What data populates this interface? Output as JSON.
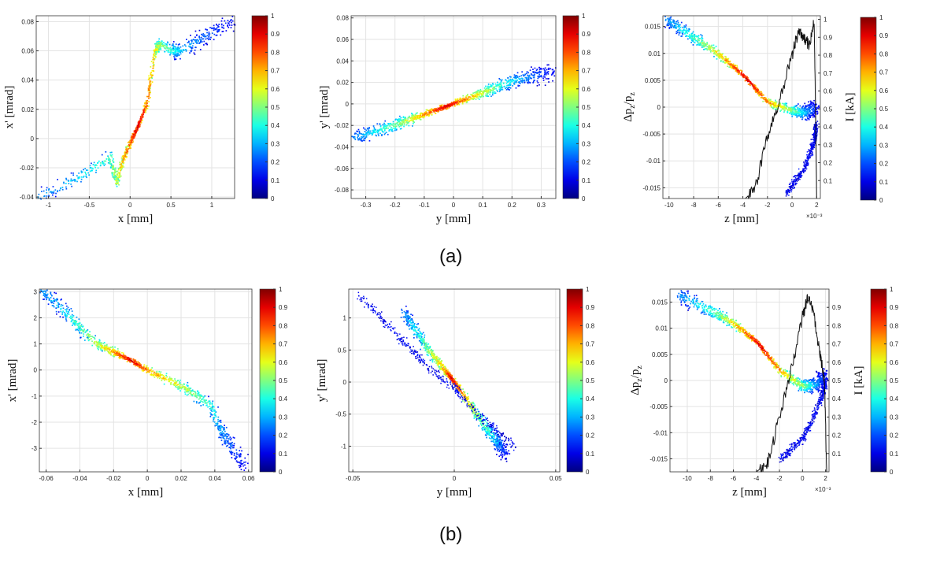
{
  "captions": {
    "a": "(a)",
    "b": "(b)"
  },
  "colormap": {
    "name": "jet",
    "ticks": [
      0,
      0.1,
      0.2,
      0.3,
      0.4,
      0.5,
      0.6,
      0.7,
      0.8,
      0.9,
      1
    ]
  },
  "chart_data": [
    {
      "id": "a1",
      "type": "scatter",
      "xlabel": "x [mm]",
      "ylabel": "x' [mrad]",
      "xlim": [
        -1.15,
        1.28
      ],
      "ylim": [
        -0.041,
        0.084
      ],
      "xticks": [
        -1,
        -0.5,
        0,
        0.5,
        1
      ],
      "yticks": [
        -0.04,
        -0.02,
        0,
        0.02,
        0.04,
        0.06,
        0.08
      ],
      "xtick_labels": [
        "-1",
        "-0.5",
        "0",
        "0.5",
        "1"
      ],
      "ytick_labels": [
        "-0.04",
        "-0.02",
        "0",
        "0.02",
        "0.04",
        "0.06",
        "0.08"
      ],
      "curve": [
        [
          -1.15,
          -0.04
        ],
        [
          -0.6,
          -0.025
        ],
        [
          -0.25,
          -0.012
        ],
        [
          -0.17,
          -0.03
        ],
        [
          -0.1,
          -0.015
        ],
        [
          0.0,
          -0.002
        ],
        [
          0.1,
          0.01
        ],
        [
          0.2,
          0.025
        ],
        [
          0.3,
          0.06
        ],
        [
          0.35,
          0.065
        ],
        [
          0.5,
          0.061
        ],
        [
          0.6,
          0.06
        ],
        [
          0.9,
          0.07
        ],
        [
          1.28,
          0.083
        ]
      ]
    },
    {
      "id": "a2",
      "type": "scatter",
      "xlabel": "y [mm]",
      "ylabel": "y' [mrad]",
      "xlim": [
        -0.35,
        0.35
      ],
      "ylim": [
        -0.088,
        0.082
      ],
      "xticks": [
        -0.3,
        -0.2,
        -0.1,
        0,
        0.1,
        0.2,
        0.3
      ],
      "yticks": [
        -0.08,
        -0.06,
        -0.04,
        -0.02,
        0,
        0.02,
        0.04,
        0.06,
        0.08
      ],
      "xtick_labels": [
        "-0.3",
        "-0.2",
        "-0.1",
        "0",
        "0.1",
        "0.2",
        "0.3"
      ],
      "ytick_labels": [
        "-0.08",
        "-0.06",
        "-0.04",
        "-0.02",
        "0",
        "0.02",
        "0.04",
        "0.06",
        "0.08"
      ],
      "curve": [
        [
          -0.34,
          -0.031
        ],
        [
          -0.2,
          -0.019
        ],
        [
          -0.1,
          -0.009
        ],
        [
          0.0,
          0.001
        ],
        [
          0.1,
          0.011
        ],
        [
          0.2,
          0.022
        ],
        [
          0.34,
          0.031
        ]
      ]
    },
    {
      "id": "a3",
      "type": "scatter",
      "xlabel": "z [mm]",
      "ylabel": "Δp",
      "ylabel_sub": "z",
      "ylabel_mid": "/p",
      "ylabel_sub2": "z",
      "xlim": [
        -10.5,
        2.3
      ],
      "ylim": [
        -0.017,
        0.017
      ],
      "xticks": [
        -10,
        -8,
        -6,
        -4,
        -2,
        0,
        2
      ],
      "yticks": [
        -0.015,
        -0.01,
        -0.005,
        0,
        0.005,
        0.01,
        0.015
      ],
      "xtick_labels": [
        "-10",
        "-8",
        "-6",
        "-4",
        "-2",
        "0",
        "2"
      ],
      "ytick_labels": [
        "-0.015",
        "-0.01",
        "-0.005",
        "0",
        "0.005",
        "0.01",
        "0.015"
      ],
      "x_multiplier": "×10⁻³",
      "y2label": "I [kA]",
      "y2lim": [
        0,
        1.02
      ],
      "y2ticks": [
        0.1,
        0.2,
        0.3,
        0.4,
        0.5,
        0.6,
        0.7,
        0.8,
        0.9,
        1
      ],
      "y2tick_labels": [
        "0.1",
        "0.2",
        "0.3",
        "0.4",
        "0.5",
        "0.6",
        "0.7",
        "0.8",
        "0.9",
        "1"
      ],
      "curve": [
        [
          -10.3,
          0.0165
        ],
        [
          -8,
          0.013
        ],
        [
          -6,
          0.01
        ],
        [
          -4,
          0.006
        ],
        [
          -2,
          0.001
        ],
        [
          0,
          -0.0005
        ],
        [
          1,
          -0.001
        ],
        [
          1.9,
          0.0
        ]
      ],
      "tail": [
        [
          -0.5,
          -0.016
        ],
        [
          1.0,
          -0.011
        ],
        [
          1.8,
          -0.006
        ],
        [
          1.9,
          -0.003
        ]
      ],
      "current": [
        [
          -3.8,
          0.0
        ],
        [
          -3,
          0.05
        ],
        [
          -2,
          0.35
        ],
        [
          -1,
          0.55
        ],
        [
          0,
          0.8
        ],
        [
          0.5,
          0.93
        ],
        [
          1,
          0.9
        ],
        [
          1.4,
          0.85
        ],
        [
          1.8,
          1.01
        ],
        [
          2.0,
          0.0
        ]
      ]
    },
    {
      "id": "b1",
      "type": "scatter",
      "xlabel": "x [mm]",
      "ylabel": "x' [mrad]",
      "xlim": [
        -0.064,
        0.062
      ],
      "ylim": [
        -3.9,
        3.1
      ],
      "xticks": [
        -0.06,
        -0.04,
        -0.02,
        0,
        0.02,
        0.04,
        0.06
      ],
      "yticks": [
        -3,
        -2,
        -1,
        0,
        1,
        2,
        3
      ],
      "xtick_labels": [
        "-0.06",
        "-0.04",
        "-0.02",
        "0",
        "0.02",
        "0.04",
        "0.06"
      ],
      "ytick_labels": [
        "-3",
        "-2",
        "-1",
        "0",
        "1",
        "2",
        "3"
      ],
      "curve": [
        [
          -0.063,
          3.1
        ],
        [
          -0.045,
          2.0
        ],
        [
          -0.03,
          1.0
        ],
        [
          -0.02,
          0.7
        ],
        [
          -0.01,
          0.4
        ],
        [
          0.0,
          0.0
        ],
        [
          0.02,
          -0.6
        ],
        [
          0.037,
          -1.3
        ],
        [
          0.045,
          -2.5
        ],
        [
          0.058,
          -3.7
        ]
      ]
    },
    {
      "id": "b2",
      "type": "scatter",
      "xlabel": "y [mm]",
      "ylabel": "y' [mrad]",
      "xlim": [
        -0.052,
        0.052
      ],
      "ylim": [
        -1.4,
        1.45
      ],
      "xticks": [
        -0.05,
        0,
        0.05
      ],
      "yticks": [
        -1,
        -0.5,
        0,
        0.5,
        1
      ],
      "xtick_labels": [
        "-0.05",
        "0",
        "0.05"
      ],
      "ytick_labels": [
        "-1",
        "-0.5",
        "0",
        "0.5",
        "1"
      ],
      "curve": [
        [
          -0.025,
          1.1
        ],
        [
          -0.015,
          0.6
        ],
        [
          -0.005,
          0.2
        ],
        [
          0.0,
          0.0
        ],
        [
          0.01,
          -0.45
        ],
        [
          0.02,
          -0.9
        ],
        [
          0.025,
          -1.1
        ]
      ],
      "tail": [
        [
          -0.048,
          1.4
        ],
        [
          -0.03,
          0.8
        ],
        [
          -0.015,
          0.3
        ],
        [
          0.0,
          -0.1
        ],
        [
          0.015,
          -0.6
        ],
        [
          0.03,
          -1.0
        ]
      ]
    },
    {
      "id": "b3",
      "type": "scatter",
      "xlabel": "z [mm]",
      "ylabel": "Δp",
      "ylabel_sub": "z",
      "ylabel_mid": "/p",
      "ylabel_sub2": "z",
      "xlim": [
        -11.5,
        2.3
      ],
      "ylim": [
        -0.0175,
        0.0175
      ],
      "xticks": [
        -10,
        -8,
        -6,
        -4,
        -2,
        0,
        2
      ],
      "yticks": [
        -0.015,
        -0.01,
        -0.005,
        0,
        0.005,
        0.01,
        0.015
      ],
      "xtick_labels": [
        "-10",
        "-8",
        "-6",
        "-4",
        "-2",
        "0",
        "2"
      ],
      "ytick_labels": [
        "-0.015",
        "-0.01",
        "-0.005",
        "0",
        "0.005",
        "0.01",
        "0.015"
      ],
      "x_multiplier": "×10⁻³",
      "y2label": "I [kA]",
      "y2lim": [
        0,
        1.0
      ],
      "y2ticks": [
        0.1,
        0.2,
        0.3,
        0.4,
        0.5,
        0.6,
        0.7,
        0.8,
        0.9
      ],
      "y2tick_labels": [
        "0.1",
        "0.2",
        "0.3",
        "0.4",
        "0.5",
        "0.6",
        "0.7",
        "0.8",
        "0.9"
      ],
      "curve": [
        [
          -10.8,
          0.0165
        ],
        [
          -8,
          0.0135
        ],
        [
          -6,
          0.011
        ],
        [
          -4,
          0.0075
        ],
        [
          -2,
          0.002
        ],
        [
          0,
          -0.001
        ],
        [
          1,
          -0.0008
        ],
        [
          2,
          0.0008
        ]
      ],
      "tail": [
        [
          -2,
          -0.015
        ],
        [
          0,
          -0.011
        ],
        [
          1.5,
          -0.004
        ],
        [
          2,
          0.0
        ]
      ],
      "current": [
        [
          -4,
          0.0
        ],
        [
          -3,
          0.05
        ],
        [
          -2,
          0.3
        ],
        [
          -1,
          0.55
        ],
        [
          0,
          0.85
        ],
        [
          0.5,
          0.96
        ],
        [
          1,
          0.85
        ],
        [
          1.5,
          0.65
        ],
        [
          1.9,
          0.5
        ],
        [
          2.1,
          0.0
        ]
      ]
    }
  ]
}
